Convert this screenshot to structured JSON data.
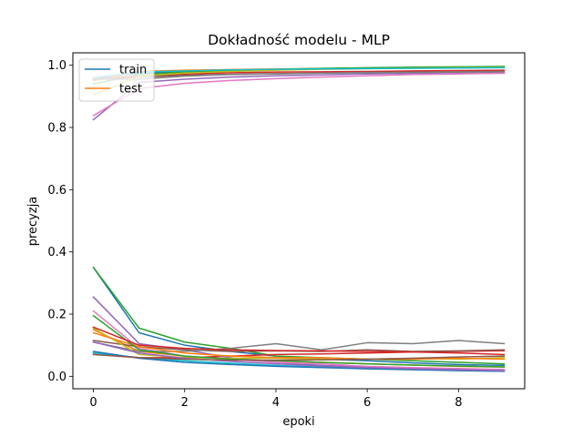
{
  "chart_data": {
    "type": "line",
    "title": "Dokładność modelu - MLP",
    "xlabel": "epoki",
    "ylabel": "precyzja",
    "xlim": [
      -0.45,
      9.45
    ],
    "ylim": [
      -0.04,
      1.04
    ],
    "xticks": [
      0,
      2,
      4,
      6,
      8
    ],
    "yticks": [
      0.0,
      0.2,
      0.4,
      0.6,
      0.8,
      1.0
    ],
    "xtick_labels": [
      "0",
      "2",
      "4",
      "6",
      "8"
    ],
    "ytick_labels": [
      "0.0",
      "0.2",
      "0.4",
      "0.6",
      "0.8",
      "1.0"
    ],
    "grid": false,
    "legend": {
      "position": "top-left",
      "entries": [
        {
          "label": "train",
          "color": "#1f77b4"
        },
        {
          "label": "test",
          "color": "#ff7f0e"
        }
      ]
    },
    "x": [
      0,
      1,
      2,
      3,
      4,
      5,
      6,
      7,
      8,
      9
    ],
    "series": [
      {
        "color": "#1f77b4",
        "values": [
          0.955,
          0.975,
          0.98,
          0.984,
          0.987,
          0.989,
          0.991,
          0.992,
          0.993,
          0.994
        ]
      },
      {
        "color": "#ff7f0e",
        "values": [
          0.95,
          0.98,
          0.984,
          0.986,
          0.988,
          0.989,
          0.99,
          0.991,
          0.992,
          0.993
        ]
      },
      {
        "color": "#2ca02c",
        "values": [
          0.94,
          0.97,
          0.978,
          0.983,
          0.987,
          0.99,
          0.992,
          0.994,
          0.995,
          0.996
        ]
      },
      {
        "color": "#d62728",
        "values": [
          0.955,
          0.965,
          0.972,
          0.976,
          0.978,
          0.979,
          0.98,
          0.982,
          0.983,
          0.984
        ]
      },
      {
        "color": "#9467bd",
        "values": [
          0.825,
          0.945,
          0.955,
          0.962,
          0.966,
          0.969,
          0.972,
          0.974,
          0.976,
          0.978
        ]
      },
      {
        "color": "#8c564b",
        "values": [
          0.955,
          0.962,
          0.968,
          0.971,
          0.973,
          0.975,
          0.977,
          0.978,
          0.979,
          0.98
        ]
      },
      {
        "color": "#e377c2",
        "values": [
          0.838,
          0.925,
          0.942,
          0.951,
          0.957,
          0.962,
          0.966,
          0.97,
          0.972,
          0.974
        ]
      },
      {
        "color": "#7f7f7f",
        "values": [
          0.955,
          0.955,
          0.965,
          0.97,
          0.972,
          0.975,
          0.976,
          0.977,
          0.978,
          0.979
        ]
      },
      {
        "color": "#bcbd22",
        "values": [
          0.905,
          0.965,
          0.975,
          0.98,
          0.984,
          0.987,
          0.989,
          0.991,
          0.992,
          0.993
        ]
      },
      {
        "color": "#17becf",
        "values": [
          0.96,
          0.978,
          0.982,
          0.985,
          0.987,
          0.988,
          0.989,
          0.99,
          0.991,
          0.992
        ]
      },
      {
        "color": "#1f77b4",
        "values": [
          0.35,
          0.14,
          0.1,
          0.08,
          0.065,
          0.055,
          0.05,
          0.043,
          0.038,
          0.035
        ]
      },
      {
        "color": "#ff7f0e",
        "values": [
          0.15,
          0.08,
          0.065,
          0.055,
          0.05,
          0.045,
          0.04,
          0.036,
          0.032,
          0.03
        ]
      },
      {
        "color": "#2ca02c",
        "values": [
          0.35,
          0.155,
          0.11,
          0.09,
          0.065,
          0.06,
          0.055,
          0.05,
          0.045,
          0.04
        ]
      },
      {
        "color": "#d62728",
        "values": [
          0.075,
          0.06,
          0.06,
          0.065,
          0.07,
          0.072,
          0.075,
          0.078,
          0.08,
          0.082
        ]
      },
      {
        "color": "#9467bd",
        "values": [
          0.255,
          0.105,
          0.085,
          0.06,
          0.045,
          0.035,
          0.03,
          0.025,
          0.022,
          0.02
        ]
      },
      {
        "color": "#8c564b",
        "values": [
          0.115,
          0.095,
          0.085,
          0.08,
          0.082,
          0.08,
          0.085,
          0.08,
          0.082,
          0.085
        ]
      },
      {
        "color": "#e377c2",
        "values": [
          0.21,
          0.09,
          0.065,
          0.055,
          0.045,
          0.04,
          0.032,
          0.028,
          0.025,
          0.022
        ]
      },
      {
        "color": "#7f7f7f",
        "values": [
          0.11,
          0.08,
          0.08,
          0.09,
          0.105,
          0.085,
          0.108,
          0.105,
          0.115,
          0.105
        ]
      },
      {
        "color": "#bcbd22",
        "values": [
          0.155,
          0.07,
          0.06,
          0.058,
          0.058,
          0.055,
          0.055,
          0.058,
          0.055,
          0.06
        ]
      },
      {
        "color": "#17becf",
        "values": [
          0.075,
          0.06,
          0.05,
          0.042,
          0.035,
          0.03,
          0.026,
          0.022,
          0.02,
          0.018
        ]
      },
      {
        "color": "#1f77b4",
        "values": [
          0.08,
          0.058,
          0.045,
          0.038,
          0.032,
          0.028,
          0.024,
          0.021,
          0.018,
          0.016
        ]
      },
      {
        "color": "#ff7f0e",
        "values": [
          0.14,
          0.095,
          0.075,
          0.065,
          0.06,
          0.06,
          0.055,
          0.055,
          0.058,
          0.055
        ]
      },
      {
        "color": "#2ca02c",
        "values": [
          0.195,
          0.085,
          0.065,
          0.055,
          0.05,
          0.045,
          0.04,
          0.036,
          0.033,
          0.03
        ]
      },
      {
        "color": "#d62728",
        "values": [
          0.158,
          0.1,
          0.09,
          0.085,
          0.083,
          0.082,
          0.08,
          0.078,
          0.075,
          0.07
        ]
      },
      {
        "color": "#9467bd",
        "values": [
          0.11,
          0.075,
          0.058,
          0.048,
          0.04,
          0.033,
          0.028,
          0.024,
          0.021,
          0.018
        ]
      },
      {
        "color": "#8c564b",
        "values": [
          0.07,
          0.06,
          0.055,
          0.052,
          0.052,
          0.053,
          0.055,
          0.058,
          0.062,
          0.065
        ]
      }
    ]
  }
}
